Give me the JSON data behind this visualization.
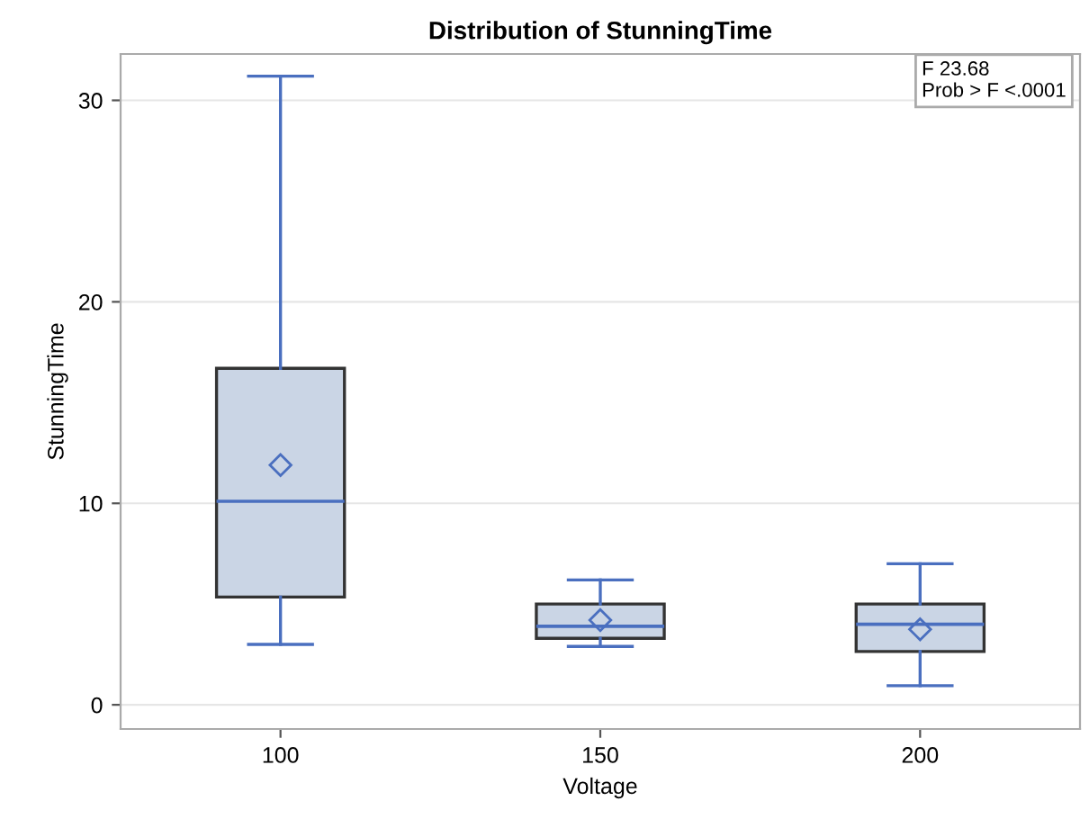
{
  "chart_data": {
    "type": "box",
    "title": "Distribution of StunningTime",
    "xlabel": "Voltage",
    "ylabel": "StunningTime",
    "categories": [
      "100",
      "150",
      "200"
    ],
    "boxes": [
      {
        "low": 3.0,
        "q1": 5.35,
        "median": 10.1,
        "q3": 16.7,
        "high": 31.2,
        "mean": 11.9
      },
      {
        "low": 2.9,
        "q1": 3.3,
        "median": 3.9,
        "q3": 5.0,
        "high": 6.2,
        "mean": 4.2
      },
      {
        "low": 0.95,
        "q1": 2.65,
        "median": 4.0,
        "q3": 5.0,
        "high": 7.0,
        "mean": 3.75
      }
    ],
    "color": "#cad5e5",
    "ylim": [
      -1.2,
      32.3
    ],
    "yticks": [
      0,
      10,
      20,
      30
    ],
    "grid": "y",
    "marker": "diamond",
    "annotations": [
      "F 23.68",
      "Prob > F <.0001"
    ]
  }
}
